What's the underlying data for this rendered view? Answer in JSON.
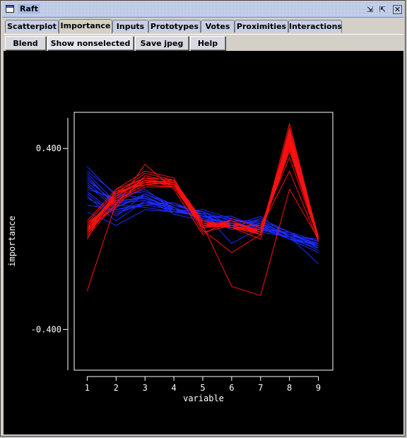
{
  "window": {
    "title": "Raft",
    "controls": {
      "restore_glyph": "⇲",
      "maximize_glyph": "⇱",
      "close_glyph": "✕"
    }
  },
  "tabs": [
    {
      "label": "Scatterplot",
      "active": false
    },
    {
      "label": "Importance",
      "active": true
    },
    {
      "label": "Inputs",
      "active": false
    },
    {
      "label": "Prototypes",
      "active": false
    },
    {
      "label": "Votes",
      "active": false
    },
    {
      "label": "Proximities",
      "active": false
    },
    {
      "label": "Interactions",
      "active": false
    }
  ],
  "toolbar": {
    "blend_label": "Blend",
    "show_nonselected_label": "Show nonselected",
    "save_jpeg_label": "Save jpeg",
    "help_label": "Help"
  },
  "colors": {
    "plot_bg": "#000000",
    "axis": "#ffffff",
    "selected": "#ff1010",
    "nonselected": "#1e2cff"
  },
  "chart_data": {
    "type": "line",
    "xlabel": "variable",
    "ylabel": "importance",
    "x": [
      1,
      2,
      3,
      4,
      5,
      6,
      7,
      8,
      9
    ],
    "xticks": [
      "1",
      "2",
      "3",
      "4",
      "5",
      "6",
      "7",
      "8",
      "9"
    ],
    "yticks": [
      0.4,
      -0.4
    ],
    "ytick_labels": [
      "0.400",
      "-0.400"
    ],
    "xlim": [
      0.55,
      9.5
    ],
    "ylim": [
      -0.58,
      0.56
    ],
    "grid": false,
    "legend": "none",
    "series": [
      {
        "group": "nonselected",
        "values": [
          0.29,
          0.16,
          0.17,
          0.12,
          0.1,
          0.07,
          0.05,
          0.0,
          -0.02
        ]
      },
      {
        "group": "nonselected",
        "values": [
          0.25,
          0.14,
          0.19,
          0.13,
          0.09,
          0.05,
          0.06,
          0.02,
          -0.01
        ]
      },
      {
        "group": "nonselected",
        "values": [
          0.3,
          0.2,
          0.18,
          0.14,
          0.08,
          0.08,
          0.03,
          0.01,
          0.0
        ]
      },
      {
        "group": "nonselected",
        "values": [
          0.2,
          0.1,
          0.2,
          0.15,
          0.12,
          0.06,
          0.08,
          0.03,
          -0.03
        ]
      },
      {
        "group": "nonselected",
        "values": [
          0.18,
          0.12,
          0.15,
          0.16,
          0.11,
          0.04,
          0.07,
          0.0,
          -0.04
        ]
      },
      {
        "group": "nonselected",
        "values": [
          0.22,
          0.18,
          0.22,
          0.13,
          0.1,
          0.1,
          0.05,
          0.02,
          -0.02
        ]
      },
      {
        "group": "nonselected",
        "values": [
          0.15,
          0.13,
          0.16,
          0.14,
          0.09,
          0.07,
          0.04,
          0.01,
          -0.05
        ]
      },
      {
        "group": "nonselected",
        "values": [
          0.27,
          0.15,
          0.14,
          0.12,
          0.13,
          0.09,
          0.06,
          0.02,
          -0.03
        ]
      },
      {
        "group": "nonselected",
        "values": [
          0.32,
          0.19,
          0.21,
          0.15,
          0.11,
          0.05,
          0.09,
          0.03,
          -0.01
        ]
      },
      {
        "group": "nonselected",
        "values": [
          0.19,
          0.08,
          0.17,
          0.13,
          0.12,
          -0.02,
          0.05,
          0.0,
          -0.06
        ]
      },
      {
        "group": "nonselected",
        "values": [
          0.23,
          0.17,
          0.18,
          0.11,
          0.08,
          0.08,
          0.07,
          0.02,
          -0.02
        ]
      },
      {
        "group": "nonselected",
        "values": [
          0.12,
          0.06,
          0.13,
          0.12,
          0.1,
          0.06,
          0.1,
          0.01,
          -0.11
        ]
      },
      {
        "group": "nonselected",
        "values": [
          0.28,
          0.14,
          0.2,
          0.14,
          0.09,
          0.07,
          0.04,
          0.03,
          -0.04
        ]
      },
      {
        "group": "nonselected",
        "values": [
          0.21,
          0.11,
          0.16,
          0.16,
          0.1,
          0.09,
          0.06,
          0.0,
          -0.03
        ]
      },
      {
        "group": "nonselected",
        "values": [
          0.26,
          0.16,
          0.19,
          0.12,
          0.11,
          0.05,
          0.05,
          0.02,
          -0.02
        ]
      },
      {
        "group": "nonselected",
        "values": [
          0.24,
          0.13,
          0.15,
          0.13,
          0.12,
          0.08,
          0.08,
          0.01,
          -0.03
        ]
      },
      {
        "group": "selected",
        "values": [
          0.05,
          0.2,
          0.26,
          0.25,
          0.07,
          0.06,
          0.03,
          0.45,
          0.0
        ]
      },
      {
        "group": "selected",
        "values": [
          0.03,
          0.18,
          0.25,
          0.24,
          0.06,
          0.07,
          0.04,
          0.43,
          0.01
        ]
      },
      {
        "group": "selected",
        "values": [
          0.07,
          0.21,
          0.27,
          0.26,
          0.08,
          0.05,
          0.02,
          0.46,
          0.0
        ]
      },
      {
        "group": "selected",
        "values": [
          0.02,
          0.17,
          0.24,
          0.23,
          0.05,
          0.08,
          0.03,
          0.4,
          0.0
        ]
      },
      {
        "group": "selected",
        "values": [
          0.06,
          0.19,
          0.26,
          0.25,
          0.07,
          0.07,
          0.04,
          0.47,
          0.01
        ]
      },
      {
        "group": "selected",
        "values": [
          0.04,
          0.2,
          0.25,
          0.24,
          0.06,
          0.06,
          0.03,
          0.42,
          0.0
        ]
      },
      {
        "group": "selected",
        "values": [
          0.08,
          0.22,
          0.27,
          0.26,
          0.08,
          0.06,
          0.02,
          0.48,
          -0.01
        ]
      },
      {
        "group": "selected",
        "values": [
          0.01,
          0.16,
          0.23,
          0.23,
          0.05,
          0.07,
          0.03,
          0.39,
          0.0
        ]
      },
      {
        "group": "selected",
        "values": [
          0.05,
          0.19,
          0.26,
          0.24,
          0.07,
          0.05,
          0.04,
          0.44,
          0.01
        ]
      },
      {
        "group": "selected",
        "values": [
          0.03,
          0.21,
          0.24,
          0.25,
          0.06,
          0.08,
          0.02,
          0.41,
          0.0
        ]
      },
      {
        "group": "selected",
        "values": [
          0.06,
          0.18,
          0.25,
          0.26,
          0.07,
          0.06,
          0.03,
          0.45,
          0.0
        ]
      },
      {
        "group": "selected",
        "values": [
          0.04,
          0.2,
          0.26,
          0.23,
          0.06,
          0.07,
          0.04,
          0.43,
          0.01
        ]
      },
      {
        "group": "selected",
        "values": [
          0.07,
          0.17,
          0.24,
          0.25,
          0.08,
          0.05,
          0.03,
          0.46,
          0.0
        ]
      },
      {
        "group": "selected",
        "values": [
          0.02,
          0.19,
          0.27,
          0.24,
          0.05,
          0.06,
          0.02,
          0.42,
          -0.01
        ]
      },
      {
        "group": "selected",
        "values": [
          0.04,
          0.15,
          0.33,
          0.22,
          0.02,
          0.09,
          0.05,
          0.3,
          -0.01
        ]
      },
      {
        "group": "selected",
        "values": [
          0.0,
          0.22,
          0.3,
          0.27,
          0.04,
          -0.06,
          0.02,
          0.51,
          0.0
        ]
      },
      {
        "group": "selected",
        "values": [
          -0.23,
          0.16,
          0.26,
          0.24,
          0.06,
          -0.21,
          -0.25,
          0.22,
          0.0
        ]
      },
      {
        "group": "selected",
        "values": [
          0.03,
          0.2,
          0.29,
          0.26,
          0.06,
          0.05,
          0.0,
          0.49,
          0.01
        ]
      },
      {
        "group": "selected",
        "values": [
          0.05,
          0.14,
          0.28,
          0.25,
          0.03,
          0.06,
          0.06,
          0.36,
          0.0
        ]
      }
    ]
  }
}
